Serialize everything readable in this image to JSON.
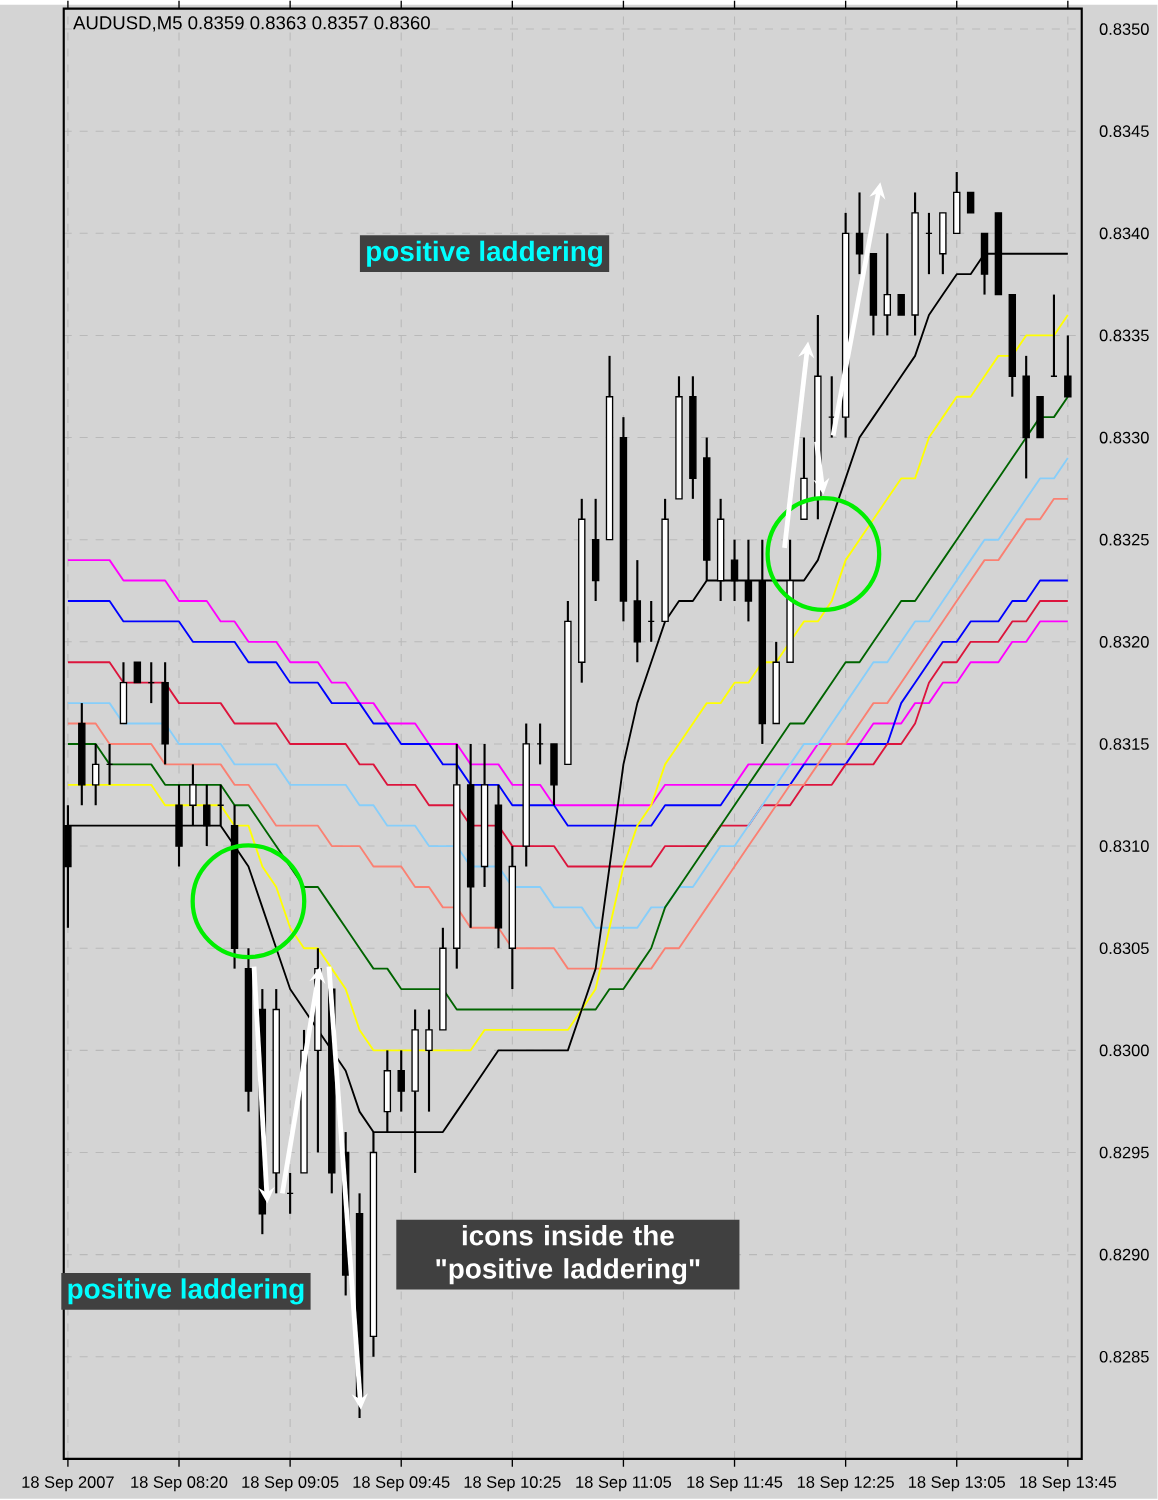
{
  "chart_data": {
    "type": "candlestick",
    "title": "AUDUSD,M5  0.8359 0.8363 0.8357 0.8360",
    "color": "#000000",
    "grid": true,
    "categories": [
      "18 Sep 2007",
      null,
      null,
      null,
      null,
      null,
      null,
      null,
      "18 Sep 08:20",
      null,
      null,
      null,
      null,
      null,
      null,
      null,
      "18 Sep 09:05",
      null,
      null,
      null,
      null,
      null,
      null,
      null,
      "18 Sep 09:45",
      null,
      null,
      null,
      null,
      null,
      null,
      null,
      "18 Sep 10:25",
      null,
      null,
      null,
      null,
      null,
      null,
      null,
      "18 Sep 11:05",
      null,
      null,
      null,
      null,
      null,
      null,
      null,
      "18 Sep 11:45",
      null,
      null,
      null,
      null,
      null,
      null,
      null,
      "18 Sep 12:25",
      null,
      null,
      null,
      null,
      null,
      null,
      null,
      "18 Sep 13:05",
      null,
      null,
      null,
      null,
      null,
      null,
      null,
      "18 Sep 13:45"
    ],
    "ohlc": [
      [
        0.8311,
        0.8312,
        0.8306,
        0.8309
      ],
      [
        0.8316,
        0.8317,
        0.8312,
        0.8313
      ],
      [
        0.8313,
        0.8315,
        0.8312,
        0.8314
      ],
      [
        0.8314,
        0.8315,
        0.8313,
        0.8314
      ],
      [
        0.8316,
        0.8319,
        0.8316,
        0.8318
      ],
      [
        0.8319,
        0.8319,
        0.8318,
        0.8318
      ],
      [
        0.8318,
        0.8319,
        0.8317,
        0.8318
      ],
      [
        0.8318,
        0.8319,
        0.8314,
        0.8315
      ],
      [
        0.8312,
        0.8313,
        0.8309,
        0.831
      ],
      [
        0.8312,
        0.8314,
        0.8311,
        0.8313
      ],
      [
        0.8312,
        0.8313,
        0.831,
        0.8311
      ],
      [
        0.8312,
        0.8313,
        0.8311,
        0.8312
      ],
      [
        0.8311,
        0.8312,
        0.8304,
        0.8305
      ],
      [
        0.8304,
        0.8305,
        0.8297,
        0.8298
      ],
      [
        0.8302,
        0.8303,
        0.8291,
        0.8292
      ],
      [
        0.8294,
        0.8303,
        0.8293,
        0.8302
      ],
      [
        0.8293,
        0.8294,
        0.8292,
        0.8293
      ],
      [
        0.8294,
        0.8301,
        0.8294,
        0.83
      ],
      [
        0.83,
        0.8305,
        0.8295,
        0.8304
      ],
      [
        0.8303,
        0.8303,
        0.8293,
        0.8294
      ],
      [
        0.8295,
        0.8296,
        0.8288,
        0.8289
      ],
      [
        0.8292,
        0.8293,
        0.8282,
        0.8283
      ],
      [
        0.8286,
        0.8296,
        0.8285,
        0.8295
      ],
      [
        0.8297,
        0.83,
        0.8296,
        0.8299
      ],
      [
        0.8299,
        0.83,
        0.8297,
        0.8298
      ],
      [
        0.8298,
        0.8302,
        0.8294,
        0.8301
      ],
      [
        0.83,
        0.8302,
        0.8297,
        0.8301
      ],
      [
        0.8301,
        0.8306,
        0.8301,
        0.8305
      ],
      [
        0.8305,
        0.8315,
        0.8304,
        0.8313
      ],
      [
        0.8313,
        0.8315,
        0.8306,
        0.8308
      ],
      [
        0.8309,
        0.8315,
        0.8308,
        0.8313
      ],
      [
        0.8312,
        0.8313,
        0.8305,
        0.8306
      ],
      [
        0.8305,
        0.831,
        0.8303,
        0.8309
      ],
      [
        0.831,
        0.8316,
        0.8309,
        0.8315
      ],
      [
        0.8315,
        0.8316,
        0.8314,
        0.8315
      ],
      [
        0.8315,
        0.8315,
        0.8312,
        0.8313
      ],
      [
        0.8314,
        0.8322,
        0.8314,
        0.8321
      ],
      [
        0.8319,
        0.8327,
        0.8318,
        0.8326
      ],
      [
        0.8325,
        0.8327,
        0.8322,
        0.8323
      ],
      [
        0.8325,
        0.8334,
        0.8325,
        0.8332
      ],
      [
        0.833,
        0.8331,
        0.8321,
        0.8322
      ],
      [
        0.8322,
        0.8324,
        0.8319,
        0.832
      ],
      [
        0.8321,
        0.8322,
        0.832,
        0.8321
      ],
      [
        0.8321,
        0.8327,
        0.8321,
        0.8326
      ],
      [
        0.8327,
        0.8333,
        0.8327,
        0.8332
      ],
      [
        0.8332,
        0.8333,
        0.8327,
        0.8328
      ],
      [
        0.8329,
        0.833,
        0.8323,
        0.8324
      ],
      [
        0.8323,
        0.8327,
        0.8322,
        0.8326
      ],
      [
        0.8324,
        0.8325,
        0.8322,
        0.8323
      ],
      [
        0.8323,
        0.8325,
        0.8321,
        0.8322
      ],
      [
        0.8323,
        0.8325,
        0.8315,
        0.8316
      ],
      [
        0.8316,
        0.832,
        0.8316,
        0.8319
      ],
      [
        0.8319,
        0.8325,
        0.8319,
        0.8323
      ],
      [
        0.8326,
        0.833,
        0.8326,
        0.8328
      ],
      [
        0.8327,
        0.8336,
        0.8326,
        0.8333
      ],
      [
        0.8331,
        0.8333,
        0.833,
        0.8331
      ],
      [
        0.8331,
        0.8341,
        0.833,
        0.834
      ],
      [
        0.834,
        0.8342,
        0.8338,
        0.8339
      ],
      [
        0.8339,
        0.8339,
        0.8335,
        0.8336
      ],
      [
        0.8336,
        0.834,
        0.8335,
        0.8337
      ],
      [
        0.8337,
        0.8337,
        0.8336,
        0.8336
      ],
      [
        0.8336,
        0.8342,
        0.8335,
        0.8341
      ],
      [
        0.834,
        0.8341,
        0.8338,
        0.834
      ],
      [
        0.8339,
        0.8341,
        0.8338,
        0.8341
      ],
      [
        0.834,
        0.8343,
        0.834,
        0.8342
      ],
      [
        0.8342,
        0.8342,
        0.8341,
        0.8341
      ],
      [
        0.834,
        0.834,
        0.8337,
        0.8338
      ],
      [
        0.8341,
        0.8341,
        0.8337,
        0.8337
      ],
      [
        0.8337,
        0.8337,
        0.8332,
        0.8333
      ],
      [
        0.8333,
        0.8334,
        0.8328,
        0.833
      ],
      [
        0.8332,
        0.8332,
        0.833,
        0.833
      ],
      [
        0.8333,
        0.8337,
        0.8333,
        0.8333
      ],
      [
        0.8333,
        0.8335,
        0.8332,
        0.8332
      ]
    ],
    "series": [
      {
        "type": "line",
        "color": "#ff00ff",
        "values": [
          0.8324,
          0.8324,
          0.8324,
          0.8324,
          0.8323,
          0.8323,
          0.8323,
          0.8323,
          0.8322,
          0.8322,
          0.8322,
          0.8321,
          0.8321,
          0.832,
          0.832,
          0.832,
          0.8319,
          0.8319,
          0.8319,
          0.8318,
          0.8318,
          0.8317,
          0.8317,
          0.8316,
          0.8316,
          0.8316,
          0.8315,
          0.8315,
          0.8315,
          0.8314,
          0.8314,
          0.8314,
          0.8313,
          0.8313,
          0.8313,
          0.8312,
          0.8312,
          0.8312,
          0.8312,
          0.8312,
          0.8312,
          0.8312,
          0.8312,
          0.8313,
          0.8313,
          0.8313,
          0.8313,
          0.8313,
          0.8313,
          0.8314,
          0.8314,
          0.8314,
          0.8314,
          0.8314,
          0.8315,
          0.8315,
          0.8315,
          0.8315,
          0.8316,
          0.8316,
          0.8316,
          0.8317,
          0.8317,
          0.8318,
          0.8318,
          0.8319,
          0.8319,
          0.8319,
          0.832,
          0.832,
          0.8321,
          0.8321,
          0.8321
        ]
      },
      {
        "type": "line",
        "color": "#0000ff",
        "values": [
          0.8322,
          0.8322,
          0.8322,
          0.8322,
          0.8321,
          0.8321,
          0.8321,
          0.8321,
          0.8321,
          0.832,
          0.832,
          0.832,
          0.832,
          0.8319,
          0.8319,
          0.8319,
          0.8318,
          0.8318,
          0.8318,
          0.8317,
          0.8317,
          0.8317,
          0.8316,
          0.8316,
          0.8315,
          0.8315,
          0.8315,
          0.8314,
          0.8314,
          0.8313,
          0.8313,
          0.8313,
          0.8312,
          0.8312,
          0.8312,
          0.8312,
          0.8311,
          0.8311,
          0.8311,
          0.8311,
          0.8311,
          0.8311,
          0.8311,
          0.8312,
          0.8312,
          0.8312,
          0.8312,
          0.8312,
          0.8313,
          0.8313,
          0.8313,
          0.8313,
          0.8313,
          0.8314,
          0.8314,
          0.8314,
          0.8314,
          0.8315,
          0.8315,
          0.8315,
          0.8317,
          0.8318,
          0.8319,
          0.832,
          0.832,
          0.8321,
          0.8321,
          0.8321,
          0.8322,
          0.8322,
          0.8323,
          0.8323,
          0.8323
        ]
      },
      {
        "type": "line",
        "color": "#dc143c",
        "values": [
          0.8319,
          0.8319,
          0.8319,
          0.8319,
          0.8318,
          0.8318,
          0.8318,
          0.8318,
          0.8317,
          0.8317,
          0.8317,
          0.8317,
          0.8316,
          0.8316,
          0.8316,
          0.8316,
          0.8315,
          0.8315,
          0.8315,
          0.8315,
          0.8315,
          0.8314,
          0.8314,
          0.8313,
          0.8313,
          0.8313,
          0.8312,
          0.8312,
          0.8312,
          0.8311,
          0.8311,
          0.8311,
          0.831,
          0.831,
          0.831,
          0.831,
          0.8309,
          0.8309,
          0.8309,
          0.8309,
          0.8309,
          0.8309,
          0.8309,
          0.831,
          0.831,
          0.831,
          0.831,
          0.8311,
          0.8311,
          0.8311,
          0.8312,
          0.8312,
          0.8312,
          0.8313,
          0.8313,
          0.8313,
          0.8314,
          0.8314,
          0.8314,
          0.8315,
          0.8315,
          0.8316,
          0.8318,
          0.8319,
          0.8319,
          0.832,
          0.832,
          0.832,
          0.8321,
          0.8321,
          0.8322,
          0.8322,
          0.8322
        ]
      },
      {
        "type": "line",
        "color": "#87cefa",
        "values": [
          0.8317,
          0.8317,
          0.8317,
          0.8317,
          0.8316,
          0.8316,
          0.8316,
          0.8316,
          0.8315,
          0.8315,
          0.8315,
          0.8315,
          0.8314,
          0.8314,
          0.8314,
          0.8314,
          0.8313,
          0.8313,
          0.8313,
          0.8313,
          0.8313,
          0.8312,
          0.8312,
          0.8311,
          0.8311,
          0.8311,
          0.831,
          0.831,
          0.831,
          0.8309,
          0.8309,
          0.8309,
          0.8308,
          0.8308,
          0.8308,
          0.8307,
          0.8307,
          0.8307,
          0.8306,
          0.8306,
          0.8306,
          0.8306,
          0.8307,
          0.8307,
          0.8308,
          0.8308,
          0.8309,
          0.831,
          0.831,
          0.8311,
          0.8312,
          0.8313,
          0.8314,
          0.8315,
          0.8315,
          0.8316,
          0.8317,
          0.8318,
          0.8319,
          0.8319,
          0.832,
          0.8321,
          0.8321,
          0.8322,
          0.8323,
          0.8324,
          0.8325,
          0.8325,
          0.8326,
          0.8327,
          0.8328,
          0.8328,
          0.8329
        ]
      },
      {
        "type": "line",
        "color": "#fa8072",
        "values": [
          0.8316,
          0.8316,
          0.8316,
          0.8315,
          0.8315,
          0.8315,
          0.8315,
          0.8314,
          0.8314,
          0.8314,
          0.8314,
          0.8314,
          0.8313,
          0.8313,
          0.8312,
          0.8311,
          0.8311,
          0.8311,
          0.8311,
          0.831,
          0.831,
          0.831,
          0.8309,
          0.8309,
          0.8309,
          0.8308,
          0.8308,
          0.8307,
          0.8307,
          0.8306,
          0.8306,
          0.8306,
          0.8305,
          0.8305,
          0.8305,
          0.8305,
          0.8304,
          0.8304,
          0.8304,
          0.8304,
          0.8304,
          0.8304,
          0.8304,
          0.8305,
          0.8305,
          0.8306,
          0.8307,
          0.8308,
          0.8309,
          0.831,
          0.8311,
          0.8312,
          0.8313,
          0.8313,
          0.8314,
          0.8315,
          0.8315,
          0.8316,
          0.8317,
          0.8317,
          0.8318,
          0.8319,
          0.832,
          0.8321,
          0.8322,
          0.8323,
          0.8324,
          0.8324,
          0.8325,
          0.8326,
          0.8326,
          0.8327,
          0.8327
        ]
      },
      {
        "type": "line",
        "color": "#006400",
        "values": [
          0.8315,
          0.8315,
          0.8315,
          0.8314,
          0.8314,
          0.8314,
          0.8314,
          0.8313,
          0.8313,
          0.8313,
          0.8313,
          0.8313,
          0.8312,
          0.8312,
          0.8311,
          0.831,
          0.8309,
          0.8308,
          0.8308,
          0.8307,
          0.8306,
          0.8305,
          0.8304,
          0.8304,
          0.8303,
          0.8303,
          0.8303,
          0.8303,
          0.8302,
          0.8302,
          0.8302,
          0.8302,
          0.8302,
          0.8302,
          0.8302,
          0.8302,
          0.8302,
          0.8302,
          0.8302,
          0.8303,
          0.8303,
          0.8304,
          0.8305,
          0.8307,
          0.8308,
          0.8309,
          0.831,
          0.8311,
          0.8312,
          0.8313,
          0.8314,
          0.8315,
          0.8316,
          0.8316,
          0.8317,
          0.8318,
          0.8319,
          0.8319,
          0.832,
          0.8321,
          0.8322,
          0.8322,
          0.8323,
          0.8324,
          0.8325,
          0.8326,
          0.8327,
          0.8328,
          0.8329,
          0.833,
          0.8331,
          0.8331,
          0.8332
        ]
      },
      {
        "type": "line",
        "color": "#ffff00",
        "values": [
          0.8313,
          0.8313,
          0.8313,
          0.8313,
          0.8313,
          0.8313,
          0.8313,
          0.8312,
          0.8312,
          0.8312,
          0.8312,
          0.8312,
          0.8311,
          0.8311,
          0.8309,
          0.8308,
          0.8306,
          0.8305,
          0.8305,
          0.8304,
          0.8303,
          0.8301,
          0.83,
          0.83,
          0.83,
          0.83,
          0.83,
          0.83,
          0.83,
          0.83,
          0.8301,
          0.8301,
          0.8301,
          0.8301,
          0.8301,
          0.8301,
          0.8301,
          0.8302,
          0.8303,
          0.8306,
          0.8309,
          0.8311,
          0.8312,
          0.8314,
          0.8315,
          0.8316,
          0.8317,
          0.8317,
          0.8318,
          0.8318,
          0.8319,
          0.8319,
          0.832,
          0.8321,
          0.8321,
          0.8322,
          0.8324,
          0.8325,
          0.8326,
          0.8327,
          0.8328,
          0.8328,
          0.833,
          0.8331,
          0.8332,
          0.8332,
          0.8333,
          0.8334,
          0.8334,
          0.8335,
          0.8335,
          0.8335,
          0.8336
        ]
      },
      {
        "type": "line",
        "color": "#000000",
        "values": [
          0.8311,
          0.8311,
          0.8311,
          0.8311,
          0.8311,
          0.8311,
          0.8311,
          0.8311,
          0.8311,
          0.8311,
          0.8311,
          0.8311,
          0.831,
          0.8309,
          0.8307,
          0.8305,
          0.8303,
          0.8302,
          0.8301,
          0.83,
          0.8299,
          0.8297,
          0.8296,
          0.8296,
          0.8296,
          0.8296,
          0.8296,
          0.8296,
          0.8297,
          0.8298,
          0.8299,
          0.83,
          0.83,
          0.83,
          0.83,
          0.83,
          0.83,
          0.8302,
          0.8304,
          0.8309,
          0.8314,
          0.8317,
          0.8319,
          0.8321,
          0.8322,
          0.8322,
          0.8323,
          0.8323,
          0.8323,
          0.8323,
          0.8323,
          0.8323,
          0.8323,
          0.8323,
          0.8324,
          0.8326,
          0.8328,
          0.833,
          0.8331,
          0.8332,
          0.8333,
          0.8334,
          0.8336,
          0.8337,
          0.8338,
          0.8338,
          0.8339,
          0.8339,
          0.8339,
          0.8339,
          0.8339,
          0.8339,
          0.8339
        ]
      }
    ],
    "ylim": [
      0.828,
      0.8351
    ],
    "yticks": [
      {
        "value": 0.8285,
        "label": "0.8285"
      },
      {
        "value": 0.829,
        "label": "0.8290"
      },
      {
        "value": 0.8295,
        "label": "0.8295"
      },
      {
        "value": 0.83,
        "label": "0.8300"
      },
      {
        "value": 0.8305,
        "label": "0.8305"
      },
      {
        "value": 0.831,
        "label": "0.8310"
      },
      {
        "value": 0.8315,
        "label": "0.8315"
      },
      {
        "value": 0.832,
        "label": "0.8320"
      },
      {
        "value": 0.8325,
        "label": "0.8325"
      },
      {
        "value": 0.833,
        "label": "0.8330"
      },
      {
        "value": 0.8335,
        "label": "0.8335"
      },
      {
        "value": 0.834,
        "label": "0.8340"
      },
      {
        "value": 0.8345,
        "label": "0.8345"
      },
      {
        "value": 0.835,
        "label": "0.8350"
      }
    ],
    "annotations": [
      "positive laddering",
      "positive laddering",
      "icons inside the \"positive laddering\""
    ]
  }
}
